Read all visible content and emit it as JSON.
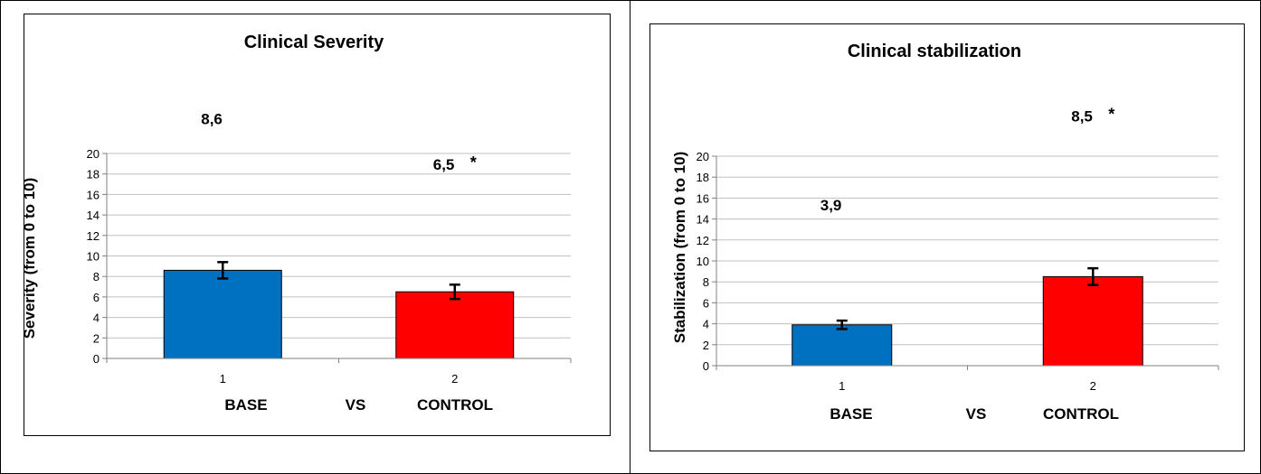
{
  "chart_data": [
    {
      "type": "bar",
      "title": "Clinical Severity",
      "xlabel": "",
      "ylabel": "Severity (from 0 to 10)",
      "ylim": [
        0,
        20
      ],
      "yticks": [
        0,
        2,
        4,
        6,
        8,
        10,
        12,
        14,
        16,
        18,
        20
      ],
      "grid": true,
      "legend": "none",
      "categories": [
        "1",
        "2"
      ],
      "values": [
        8.6,
        6.5
      ],
      "error": [
        0.8,
        0.7
      ],
      "data_labels": [
        "8,6",
        "6,5"
      ],
      "significance": [
        "",
        "*"
      ],
      "colors": [
        "#0070C0",
        "#FF0000"
      ],
      "x_annotations": [
        "BASE",
        "VS",
        "CONTROL"
      ]
    },
    {
      "type": "bar",
      "title": "Clinical stabilization",
      "xlabel": "",
      "ylabel": "Stabilization (from 0 to 10)",
      "ylim": [
        0,
        20
      ],
      "yticks": [
        0,
        2,
        4,
        6,
        8,
        10,
        12,
        14,
        16,
        18,
        20
      ],
      "grid": true,
      "legend": "none",
      "categories": [
        "1",
        "2"
      ],
      "values": [
        3.9,
        8.5
      ],
      "error": [
        0.4,
        0.8
      ],
      "data_labels": [
        "3,9",
        "8,5"
      ],
      "significance": [
        "",
        "*"
      ],
      "colors": [
        "#0070C0",
        "#FF0000"
      ],
      "x_annotations": [
        "BASE",
        "VS",
        "CONTROL"
      ]
    }
  ]
}
